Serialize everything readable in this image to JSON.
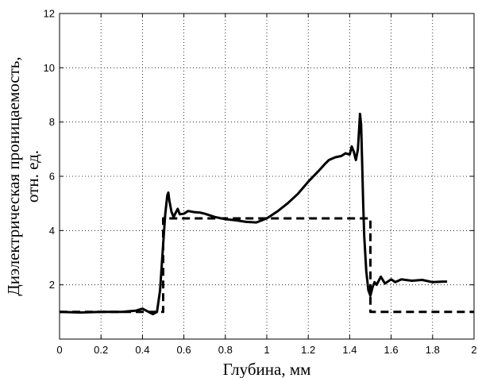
{
  "chart_data": {
    "type": "line",
    "title": "",
    "xlabel": "Глубина, мм",
    "ylabel_line1": "Диэлектрическая проницаемость,",
    "ylabel_line2": "отн. ед.",
    "xlim": [
      0,
      2
    ],
    "ylim": [
      0,
      12
    ],
    "xticks": [
      0,
      0.2,
      0.4,
      0.6,
      0.8,
      1,
      1.2,
      1.4,
      1.6,
      1.8,
      2
    ],
    "xtick_labels": [
      "0",
      "0.2",
      "0.4",
      "0.6",
      "0.8",
      "1",
      "1.2",
      "1.4",
      "1.6",
      "1.8",
      "2"
    ],
    "yticks": [
      2,
      4,
      6,
      8,
      10,
      12
    ],
    "ytick_labels": [
      "2",
      "4",
      "6",
      "8",
      "10",
      "12"
    ],
    "grid": true,
    "grid_style": "dotted",
    "series": [
      {
        "style": "solid",
        "x": [
          0,
          0.1,
          0.2,
          0.3,
          0.37,
          0.4,
          0.43,
          0.45,
          0.47,
          0.485,
          0.5,
          0.51,
          0.52,
          0.525,
          0.53,
          0.54,
          0.55,
          0.56,
          0.57,
          0.58,
          0.6,
          0.62,
          0.65,
          0.68,
          0.7,
          0.75,
          0.8,
          0.85,
          0.9,
          0.95,
          1.0,
          1.05,
          1.1,
          1.15,
          1.2,
          1.25,
          1.28,
          1.3,
          1.33,
          1.36,
          1.38,
          1.4,
          1.41,
          1.42,
          1.43,
          1.44,
          1.45,
          1.455,
          1.46,
          1.465,
          1.47,
          1.48,
          1.49,
          1.5,
          1.51,
          1.52,
          1.53,
          1.55,
          1.57,
          1.6,
          1.62,
          1.65,
          1.7,
          1.75,
          1.8,
          1.85,
          1.87
        ],
        "y": [
          1.0,
          0.98,
          1.0,
          1.0,
          1.05,
          1.12,
          1.0,
          0.92,
          1.0,
          1.8,
          3.5,
          4.6,
          5.3,
          5.4,
          5.1,
          4.7,
          4.5,
          4.65,
          4.8,
          4.6,
          4.62,
          4.72,
          4.68,
          4.66,
          4.62,
          4.5,
          4.42,
          4.38,
          4.32,
          4.3,
          4.45,
          4.7,
          5.0,
          5.35,
          5.8,
          6.2,
          6.45,
          6.6,
          6.7,
          6.75,
          6.85,
          6.8,
          7.1,
          6.9,
          6.6,
          7.0,
          8.3,
          7.9,
          6.5,
          5.0,
          3.8,
          2.5,
          1.8,
          1.6,
          1.9,
          2.1,
          2.0,
          2.3,
          2.05,
          2.2,
          2.1,
          2.2,
          2.15,
          2.18,
          2.1,
          2.12,
          2.12
        ]
      },
      {
        "style": "dashed",
        "x": [
          0,
          0.5,
          0.5,
          1.5,
          1.5,
          2.0
        ],
        "y": [
          1.0,
          1.0,
          4.45,
          4.45,
          1.0,
          1.0
        ]
      }
    ]
  }
}
